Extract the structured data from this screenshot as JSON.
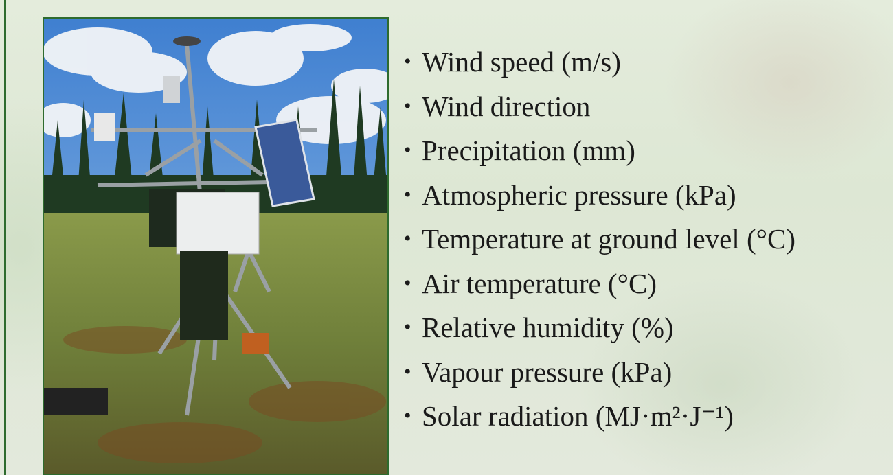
{
  "bullets": [
    "Wind speed (m/s)",
    "Wind direction",
    "Precipitation (mm)",
    "Atmospheric pressure (kPa)",
    "Temperature at ground level (°C)",
    "Air temperature (°C)",
    "Relative humidity (%)",
    "Vapour pressure (kPa)",
    "Solar radiation (MJ·m²·J⁻¹)"
  ]
}
